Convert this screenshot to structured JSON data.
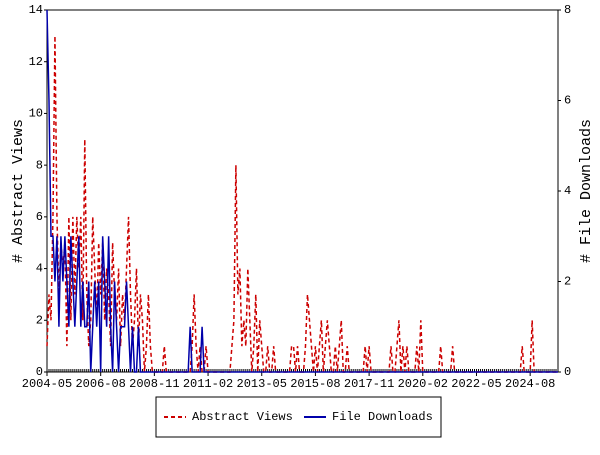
{
  "chart_data": {
    "type": "line",
    "y_label": "# Abstract Views",
    "y2_label": "# File Downloads",
    "categories": [
      "2004-05",
      null,
      null,
      null,
      null,
      null,
      null,
      null,
      null,
      null,
      null,
      null,
      null,
      null,
      null,
      null,
      null,
      null,
      null,
      null,
      null,
      null,
      null,
      null,
      null,
      null,
      null,
      "2006-08",
      null,
      null,
      null,
      null,
      null,
      null,
      null,
      null,
      null,
      null,
      null,
      null,
      null,
      null,
      null,
      null,
      null,
      null,
      null,
      null,
      null,
      null,
      null,
      null,
      null,
      null,
      "2008-11",
      null,
      null,
      null,
      null,
      null,
      null,
      null,
      null,
      null,
      null,
      null,
      null,
      null,
      null,
      null,
      null,
      null,
      null,
      null,
      null,
      null,
      null,
      null,
      null,
      null,
      null,
      "2011-02",
      null,
      null,
      null,
      null,
      null,
      null,
      null,
      null,
      null,
      null,
      null,
      null,
      null,
      null,
      null,
      null,
      null,
      null,
      null,
      null,
      null,
      null,
      null,
      null,
      null,
      null,
      "2013-05",
      null,
      null,
      null,
      null,
      null,
      null,
      null,
      null,
      null,
      null,
      null,
      null,
      null,
      null,
      null,
      null,
      null,
      null,
      null,
      null,
      null,
      null,
      null,
      null,
      null,
      null,
      "2015-08",
      null,
      null,
      null,
      null,
      null,
      null,
      null,
      null,
      null,
      null,
      null,
      null,
      null,
      null,
      null,
      null,
      null,
      null,
      null,
      null,
      null,
      null,
      null,
      null,
      null,
      null,
      "2017-11",
      null,
      null,
      null,
      null,
      null,
      null,
      null,
      null,
      null,
      null,
      null,
      null,
      null,
      null,
      null,
      null,
      null,
      null,
      null,
      null,
      null,
      null,
      null,
      null,
      null,
      null,
      "2020-02",
      null,
      null,
      null,
      null,
      null,
      null,
      null,
      null,
      null,
      null,
      null,
      null,
      null,
      null,
      null,
      null,
      null,
      null,
      null,
      null,
      null,
      null,
      null,
      null,
      null,
      null,
      "2022-05",
      null,
      null,
      null,
      null,
      null,
      null,
      null,
      null,
      null,
      null,
      null,
      null,
      null,
      null,
      null,
      null,
      null,
      null,
      null,
      null,
      null,
      null,
      null,
      null,
      null,
      null,
      "2024-08",
      null,
      null,
      null,
      null,
      null,
      null,
      null,
      null,
      null,
      null,
      null,
      null,
      null,
      null
    ],
    "series": [
      {
        "name": "Abstract Views",
        "color": "#cc0000",
        "line_style": "dashed",
        "values": [
          1,
          3,
          2,
          6,
          13,
          6,
          3,
          5,
          4,
          5,
          1,
          6,
          2,
          6,
          3,
          6,
          4,
          6,
          2,
          9,
          3,
          1,
          2,
          6,
          4,
          2,
          5,
          3,
          5,
          2,
          4,
          3,
          1,
          5,
          3,
          2,
          4,
          1,
          3,
          2,
          4,
          6,
          3,
          1,
          2,
          4,
          1,
          3,
          2,
          0,
          1,
          3,
          1,
          0,
          0,
          0,
          0,
          0,
          0,
          1,
          0,
          0,
          0,
          0,
          0,
          0,
          0,
          0,
          0,
          0,
          0,
          0,
          0,
          1,
          3,
          1,
          0,
          1,
          0,
          0,
          1,
          0,
          0,
          0,
          0,
          0,
          0,
          0,
          0,
          0,
          0,
          0,
          0,
          1,
          2,
          8,
          3,
          4,
          1,
          2,
          1,
          4,
          2,
          0,
          1,
          3,
          0,
          2,
          1,
          0,
          0,
          1,
          0,
          0,
          1,
          0,
          0,
          0,
          0,
          0,
          0,
          0,
          0,
          1,
          1,
          0,
          1,
          0,
          0,
          0,
          1,
          3,
          2,
          1,
          0,
          1,
          0,
          1,
          2,
          0,
          1,
          2,
          1,
          0,
          0,
          1,
          0,
          1,
          2,
          0,
          0,
          1,
          0,
          0,
          0,
          0,
          0,
          0,
          0,
          0,
          1,
          0,
          1,
          0,
          0,
          0,
          0,
          0,
          0,
          0,
          0,
          0,
          0,
          1,
          0,
          0,
          1,
          2,
          0,
          1,
          0,
          1,
          0,
          0,
          0,
          0,
          1,
          0,
          2,
          0,
          0,
          0,
          0,
          0,
          0,
          0,
          0,
          0,
          1,
          0,
          0,
          0,
          0,
          0,
          1,
          0,
          0,
          0,
          0,
          0,
          0,
          0,
          0,
          0,
          0,
          0,
          0,
          0,
          0,
          0,
          0,
          0,
          0,
          0,
          0,
          0,
          0,
          0,
          0,
          0,
          0,
          0,
          0,
          0,
          0,
          0,
          0,
          0,
          0,
          1,
          0,
          0,
          0,
          0,
          2,
          0,
          0,
          0,
          0,
          0,
          0,
          0,
          0,
          0,
          0,
          0,
          0,
          0
        ]
      },
      {
        "name": "File Downloads",
        "color": "#0000aa",
        "line_style": "solid",
        "axis": "y2",
        "values": [
          8,
          6,
          3,
          3,
          2,
          3,
          1,
          3,
          2,
          3,
          2,
          1,
          3,
          2,
          1,
          2,
          3,
          1,
          2,
          1,
          1,
          2,
          0,
          1,
          2,
          1,
          2,
          0,
          3,
          2,
          1,
          3,
          1,
          0,
          2,
          1,
          0,
          1,
          1,
          1,
          2,
          1,
          0,
          1,
          0,
          0,
          1,
          0,
          0,
          0,
          0,
          0,
          0,
          0,
          0,
          0,
          0,
          0,
          0,
          0,
          0,
          0,
          0,
          0,
          0,
          0,
          0,
          0,
          0,
          0,
          0,
          0,
          1,
          0,
          0,
          0,
          0,
          0,
          1,
          0,
          0,
          0,
          0,
          0,
          0,
          0,
          0,
          0,
          0,
          0,
          0,
          0,
          0,
          0,
          0,
          0,
          0,
          0,
          0,
          0,
          0,
          0,
          0,
          0,
          0,
          0,
          0,
          0,
          0,
          0,
          0,
          0,
          0,
          0,
          0,
          0,
          0,
          0,
          0,
          0,
          0,
          0,
          0,
          0,
          0,
          0,
          0,
          0,
          0,
          0,
          0,
          0,
          0,
          0,
          0,
          0,
          0,
          0,
          0,
          0,
          0,
          0,
          0,
          0,
          0,
          0,
          0,
          0,
          0,
          0,
          0,
          0,
          0,
          0,
          0,
          0,
          0,
          0,
          0,
          0,
          0,
          0,
          0,
          0,
          0,
          0,
          0,
          0,
          0,
          0,
          0,
          0,
          0,
          0,
          0,
          0,
          0,
          0,
          0,
          0,
          0,
          0,
          0,
          0,
          0,
          0,
          0,
          0,
          0,
          0,
          0,
          0,
          0,
          0,
          0,
          0,
          0,
          0,
          0,
          0,
          0,
          0,
          0,
          0,
          0,
          0,
          0,
          0,
          0,
          0,
          0,
          0,
          0,
          0,
          0,
          0,
          0,
          0,
          0,
          0,
          0,
          0,
          0,
          0,
          0,
          0,
          0,
          0,
          0,
          0,
          0,
          0,
          0,
          0,
          0,
          0,
          0,
          0,
          0,
          0,
          0,
          0,
          0,
          0,
          0,
          0,
          0,
          0,
          0,
          0,
          0,
          0,
          0,
          0,
          0,
          0,
          0,
          0
        ]
      }
    ],
    "ylim": [
      0,
      14
    ],
    "yticks": [
      0,
      2,
      4,
      6,
      8,
      10,
      12,
      14
    ],
    "y2lim": [
      0,
      8
    ],
    "y2ticks": [
      0,
      2,
      4,
      6,
      8
    ],
    "legend": "bottom"
  }
}
